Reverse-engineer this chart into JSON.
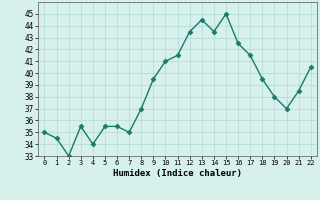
{
  "x": [
    0,
    1,
    2,
    3,
    4,
    5,
    6,
    7,
    8,
    9,
    10,
    11,
    12,
    13,
    14,
    15,
    16,
    17,
    18,
    19,
    20,
    21,
    22
  ],
  "y": [
    35.0,
    34.5,
    33.0,
    35.5,
    34.0,
    35.5,
    35.5,
    35.0,
    37.0,
    39.5,
    41.0,
    41.5,
    43.5,
    44.5,
    43.5,
    45.0,
    42.5,
    41.5,
    39.5,
    38.0,
    37.0,
    38.5,
    40.5
  ],
  "xlabel": "Humidex (Indice chaleur)",
  "ylim": [
    33,
    46
  ],
  "xlim": [
    -0.5,
    22.5
  ],
  "yticks": [
    33,
    34,
    35,
    36,
    37,
    38,
    39,
    40,
    41,
    42,
    43,
    44,
    45
  ],
  "xticks": [
    0,
    1,
    2,
    3,
    4,
    5,
    6,
    7,
    8,
    9,
    10,
    11,
    12,
    13,
    14,
    15,
    16,
    17,
    18,
    19,
    20,
    21,
    22
  ],
  "line_color": "#1a7a6e",
  "marker": "D",
  "marker_size": 2.5,
  "bg_color": "#d6f0eb",
  "grid_color": "#b8ddd6",
  "line_width": 1.0
}
